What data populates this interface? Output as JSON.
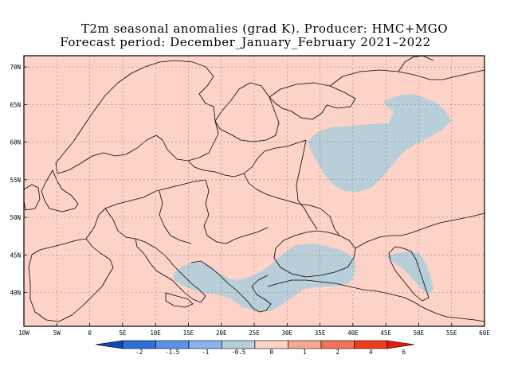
{
  "title": {
    "line1": "T2m seasonal anomalies (grad K). Producer: HMC+MGO",
    "line2": "Forecast period: December_January_February 2021–2022"
  },
  "map": {
    "region": "Europe",
    "lon_range": [
      -10,
      60
    ],
    "lat_range": [
      35.5,
      71.5
    ],
    "lon_ticks": [
      "10W",
      "5W",
      "0",
      "5E",
      "10E",
      "15E",
      "20E",
      "25E",
      "30E",
      "35E",
      "40E",
      "45E",
      "50E",
      "55E",
      "60E"
    ],
    "lat_ticks": [
      "70N",
      "65N",
      "60N",
      "55N",
      "50N",
      "45N",
      "40N"
    ],
    "background_color": "#fdd3c7",
    "anomaly_color_neg": "#b8cfd9",
    "grid": "dashed"
  },
  "legend": {
    "labels": [
      "-2",
      "-1.5",
      "-1",
      "-0.5",
      "0",
      "1",
      "2",
      "4",
      "6"
    ],
    "colors": [
      "#0b49b5",
      "#2d6fd6",
      "#5a92e8",
      "#8bb3ee",
      "#b8cfd9",
      "#fdd3c7",
      "#f6a791",
      "#f2755a",
      "#ee3d18",
      "#e51b0b"
    ]
  }
}
